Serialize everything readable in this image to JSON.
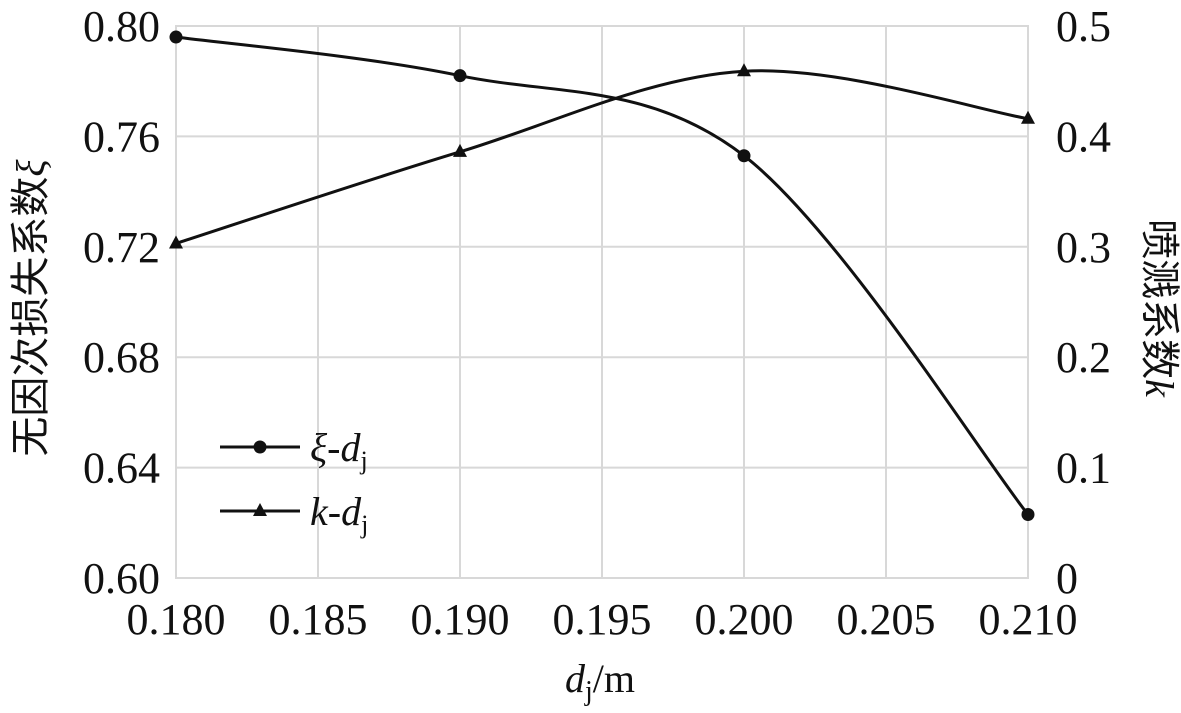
{
  "chart_data": {
    "type": "line",
    "x": [
      0.18,
      0.19,
      0.2,
      0.21
    ],
    "x_tick_labels": [
      "0.180",
      "0.185",
      "0.190",
      "0.195",
      "0.200",
      "0.205",
      "0.210"
    ],
    "xlim": [
      0.18,
      0.21
    ],
    "xlabel": {
      "sym": "d",
      "sub": "j",
      "unit": "/m"
    },
    "y_left": {
      "label_text": "无因次损失系数",
      "label_sym": "ξ",
      "ylim": [
        0.6,
        0.8
      ],
      "tick_labels": [
        "0.60",
        "0.64",
        "0.68",
        "0.72",
        "0.76",
        "0.80"
      ]
    },
    "y_right": {
      "label_text": "喷溅系数",
      "label_sym": "k",
      "ylim": [
        0,
        0.5
      ],
      "tick_labels": [
        "0",
        "0.1",
        "0.2",
        "0.3",
        "0.4",
        "0.5"
      ]
    },
    "series": [
      {
        "name_sym": "ξ",
        "name_sub": "j",
        "axis": "left",
        "marker": "circle",
        "color": "#111111",
        "values": [
          0.796,
          0.782,
          0.753,
          0.623
        ]
      },
      {
        "name_sym": "k",
        "name_sub": "j",
        "axis": "right",
        "marker": "triangle",
        "color": "#111111",
        "values": [
          0.303,
          0.386,
          0.459,
          0.416
        ]
      }
    ],
    "grid": {
      "vertical": true,
      "horizontal": true
    },
    "legend_position": "lower-left",
    "smoothed": true
  }
}
